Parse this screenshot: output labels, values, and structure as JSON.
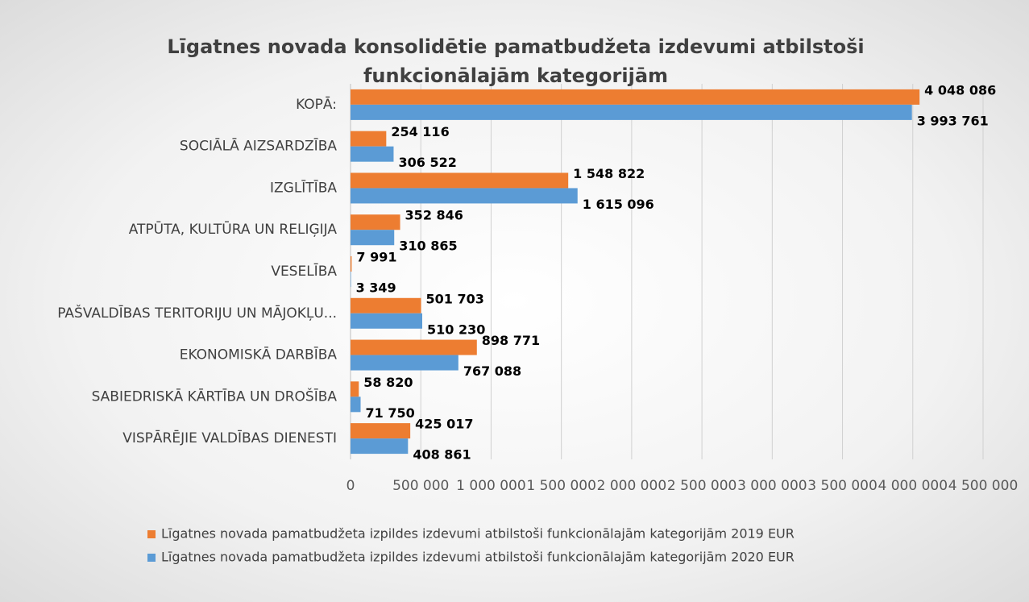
{
  "chart_data": {
    "type": "bar",
    "orientation": "horizontal",
    "title": "Līgatnes novada konsolidētie pamatbudžeta izdevumi atbilstoši funkcionālajām  kategorijām",
    "categories": [
      "KOPĀ:",
      "SOCIĀLĀ AIZSARDZĪBA",
      "IZGLĪTĪBA",
      "ATPŪTA, KULTŪRA UN RELIĢIJA",
      "VESELĪBA",
      "PAŠVALDĪBAS TERITORIJU UN MĀJOKĻU...",
      "EKONOMISKĀ DARBĪBA",
      "SABIEDRISKĀ KĀRTĪBA UN DROŠĪBA",
      "VISPĀRĒJIE VALDĪBAS DIENESTI"
    ],
    "series": [
      {
        "name": "Līgatnes novada  pamatbudžeta izpildes izdevumi atbilstoši funkcionālajām kategorijām 2019 EUR",
        "color": "#ed7d31",
        "values": [
          4048086,
          254116,
          1548822,
          352846,
          7991,
          501703,
          898771,
          58820,
          425017
        ],
        "value_labels": [
          "4 048 086",
          "254 116",
          "1 548 822",
          "352 846",
          "7 991",
          "501 703",
          "898 771",
          "58 820",
          "425 017"
        ]
      },
      {
        "name": "Līgatnes novada  pamatbudžeta izpildes izdevumi atbilstoši funkcionālajām kategorijām 2020 EUR",
        "color": "#5b9bd5",
        "values": [
          3993761,
          306522,
          1615096,
          310865,
          3349,
          510230,
          767088,
          71750,
          408861
        ],
        "value_labels": [
          "3 993 761",
          "306 522",
          "1 615 096",
          "310 865",
          "3 349",
          "510 230",
          "767 088",
          "71 750",
          "408 861"
        ]
      }
    ],
    "xlim": [
      0,
      4500000
    ],
    "xticks": [
      0,
      {
        "value": 500000,
        "label": "500 000"
      },
      {
        "value": 1000000,
        "label": "1 000 000"
      },
      {
        "value": 1500000,
        "label": "1 500 000"
      },
      {
        "value": 2000000,
        "label": "2 000 000"
      },
      {
        "value": 2500000,
        "label": "2 500 000"
      },
      {
        "value": 3000000,
        "label": "3 000 000"
      },
      {
        "value": 3500000,
        "label": "3 500 000"
      },
      {
        "value": 4000000,
        "label": "4 000 000"
      },
      {
        "value": 4500000,
        "label": "4 500 000"
      }
    ],
    "grid": true,
    "legend": "bottom"
  }
}
